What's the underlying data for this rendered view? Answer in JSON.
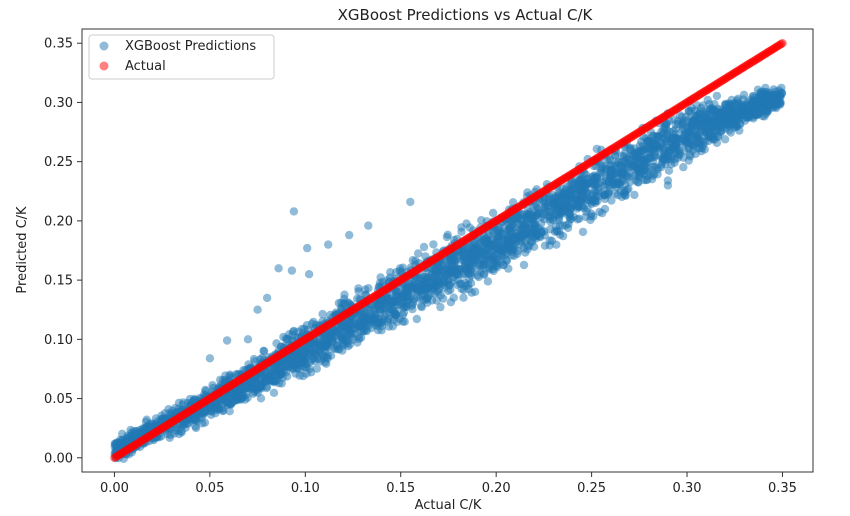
{
  "chart_data": {
    "type": "scatter",
    "title": "XGBoost Predictions vs Actual C/K",
    "xlabel": "Actual C/K",
    "ylabel": "Predicted C/K",
    "xlim": [
      -0.017,
      0.366
    ],
    "ylim": [
      -0.012,
      0.362
    ],
    "xticks": [
      0.0,
      0.05,
      0.1,
      0.15,
      0.2,
      0.25,
      0.3,
      0.35
    ],
    "xtick_labels": [
      "0.00",
      "0.05",
      "0.10",
      "0.15",
      "0.20",
      "0.25",
      "0.30",
      "0.35"
    ],
    "yticks": [
      0.0,
      0.05,
      0.1,
      0.15,
      0.2,
      0.25,
      0.3,
      0.35
    ],
    "ytick_labels": [
      "0.00",
      "0.05",
      "0.10",
      "0.15",
      "0.20",
      "0.25",
      "0.30",
      "0.35"
    ],
    "grid": false,
    "legend": "top-left",
    "series": [
      {
        "name": "XGBoost Predictions",
        "color": "#1f77b4",
        "alpha": 0.5,
        "outliers": [
          [
            0.094,
            0.208
          ],
          [
            0.101,
            0.177
          ],
          [
            0.112,
            0.18
          ],
          [
            0.123,
            0.188
          ],
          [
            0.133,
            0.196
          ],
          [
            0.155,
            0.216
          ],
          [
            0.08,
            0.135
          ],
          [
            0.086,
            0.16
          ],
          [
            0.093,
            0.158
          ],
          [
            0.102,
            0.155
          ],
          [
            0.075,
            0.125
          ],
          [
            0.07,
            0.1
          ],
          [
            0.05,
            0.084
          ],
          [
            0.059,
            0.099
          ],
          [
            0.332,
            0.295
          ],
          [
            0.34,
            0.305
          ],
          [
            0.32,
            0.285
          ],
          [
            0.293,
            0.27
          ],
          [
            0.29,
            0.23
          ],
          [
            0.29,
            0.234
          ]
        ],
        "band": {
          "x_range": [
            0.0,
            0.35
          ],
          "center": [
            [
              0.0,
              0.006
            ],
            [
              0.05,
              0.046
            ],
            [
              0.1,
              0.091
            ],
            [
              0.15,
              0.138
            ],
            [
              0.2,
              0.18
            ],
            [
              0.25,
              0.228
            ],
            [
              0.3,
              0.275
            ],
            [
              0.35,
              0.305
            ]
          ],
          "spread": [
            [
              0.0,
              0.012
            ],
            [
              0.05,
              0.02
            ],
            [
              0.1,
              0.03
            ],
            [
              0.15,
              0.034
            ],
            [
              0.2,
              0.036
            ],
            [
              0.25,
              0.035
            ],
            [
              0.3,
              0.032
            ],
            [
              0.35,
              0.012
            ]
          ]
        }
      },
      {
        "name": "Actual",
        "color": "#ff0000",
        "alpha": 0.5,
        "line": {
          "x": [
            0.0,
            0.35
          ],
          "y": [
            0.0,
            0.35
          ]
        }
      }
    ]
  }
}
